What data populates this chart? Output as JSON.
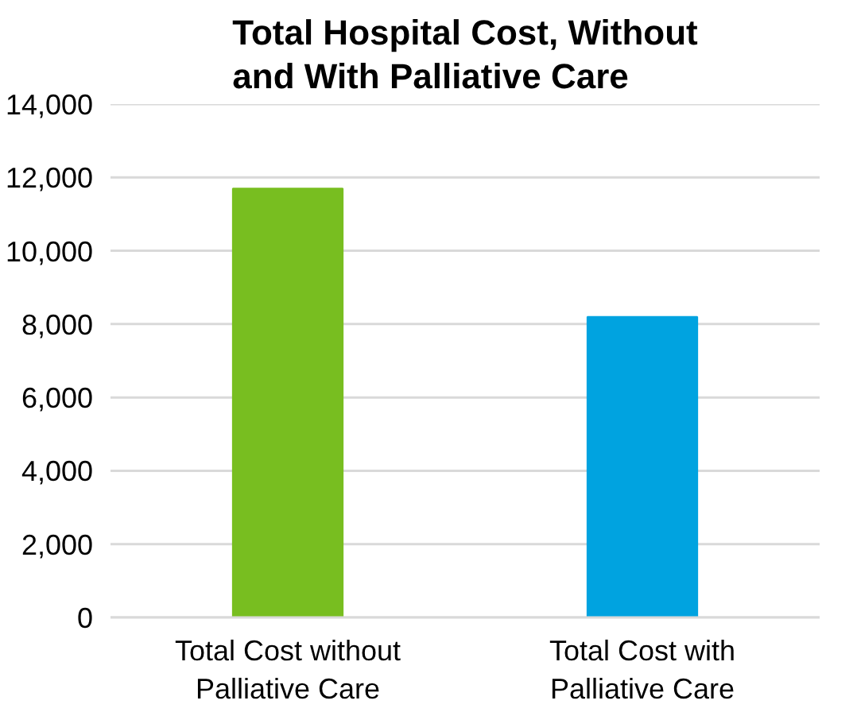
{
  "chart_data": {
    "type": "bar",
    "title": "Total Hospital Cost, Without\nand With Palliative Care",
    "categories": [
      "Total Cost without\nPalliative Care",
      "Total Cost with\nPalliative Care"
    ],
    "values": [
      11700,
      8200
    ],
    "colors": [
      "#78be20",
      "#00a3e0"
    ],
    "ylim": [
      0,
      14000
    ],
    "yticks": [
      {
        "value": 0,
        "label": "0"
      },
      {
        "value": 2000,
        "label": "2,000"
      },
      {
        "value": 4000,
        "label": "4,000"
      },
      {
        "value": 6000,
        "label": "6,000"
      },
      {
        "value": 8000,
        "label": "8,000"
      },
      {
        "value": 10000,
        "label": "10,000"
      },
      {
        "value": 12000,
        "label": "12,000"
      },
      {
        "value": 14000,
        "label": "14,000"
      }
    ],
    "grid": "y"
  }
}
